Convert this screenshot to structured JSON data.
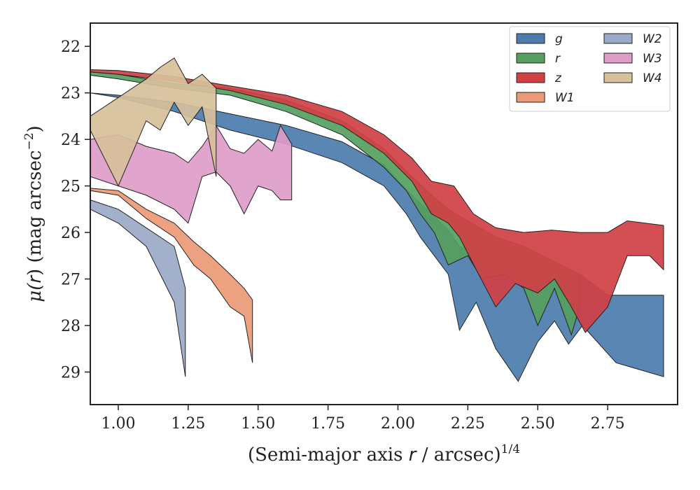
{
  "chart_data": {
    "type": "area",
    "title": "",
    "xlabel_parts": {
      "prefix": "(Semi-major axis ",
      "var": "r",
      "suffix": " / arcsec)",
      "power": "1/4"
    },
    "ylabel_parts": {
      "prefix": "μ(",
      "var": "r",
      "suffix": ") (mag arcsec",
      "power": "−2",
      "close": ")"
    },
    "xlim": [
      0.9,
      3.0
    ],
    "ylim": [
      29.7,
      21.5
    ],
    "y_inverted": true,
    "xticks": [
      "1.00",
      "1.25",
      "1.50",
      "1.75",
      "2.00",
      "2.25",
      "2.50",
      "2.75"
    ],
    "xtick_values": [
      1.0,
      1.25,
      1.5,
      1.75,
      2.0,
      2.25,
      2.5,
      2.75
    ],
    "yticks": [
      "22",
      "23",
      "24",
      "25",
      "26",
      "27",
      "28",
      "29"
    ],
    "ytick_values": [
      22,
      23,
      24,
      25,
      26,
      27,
      28,
      29
    ],
    "grid": false,
    "legend": {
      "placement": "top-right",
      "columns": 2
    },
    "series": [
      {
        "name": "g",
        "color": "#4c7cad",
        "upper": [
          [
            0.9,
            23.0
          ],
          [
            1.0,
            23.05
          ],
          [
            1.2,
            23.2
          ],
          [
            1.4,
            23.45
          ],
          [
            1.6,
            23.7
          ],
          [
            1.8,
            24.05
          ],
          [
            1.95,
            24.55
          ],
          [
            2.05,
            25.2
          ],
          [
            2.12,
            25.6
          ],
          [
            2.18,
            25.95
          ],
          [
            2.22,
            26.3
          ],
          [
            2.28,
            26.4
          ],
          [
            2.35,
            26.6
          ],
          [
            2.45,
            26.85
          ],
          [
            2.55,
            26.9
          ],
          [
            2.65,
            26.9
          ],
          [
            2.75,
            27.35
          ],
          [
            2.95,
            27.35
          ]
        ],
        "lower": [
          [
            0.9,
            23.0
          ],
          [
            1.0,
            23.1
          ],
          [
            1.2,
            23.4
          ],
          [
            1.4,
            23.8
          ],
          [
            1.6,
            24.1
          ],
          [
            1.8,
            24.5
          ],
          [
            1.95,
            25.0
          ],
          [
            2.03,
            25.6
          ],
          [
            2.08,
            26.1
          ],
          [
            2.13,
            26.5
          ],
          [
            2.18,
            26.9
          ],
          [
            2.22,
            28.1
          ],
          [
            2.28,
            27.5
          ],
          [
            2.35,
            28.5
          ],
          [
            2.43,
            29.2
          ],
          [
            2.5,
            28.35
          ],
          [
            2.56,
            27.9
          ],
          [
            2.61,
            28.4
          ],
          [
            2.66,
            28.0
          ],
          [
            2.78,
            28.8
          ],
          [
            2.95,
            29.1
          ]
        ]
      },
      {
        "name": "r",
        "color": "#55a05e",
        "upper": [
          [
            0.9,
            22.55
          ],
          [
            1.0,
            22.6
          ],
          [
            1.2,
            22.8
          ],
          [
            1.4,
            22.9
          ],
          [
            1.6,
            23.15
          ],
          [
            1.8,
            23.6
          ],
          [
            1.95,
            24.2
          ],
          [
            2.05,
            24.8
          ],
          [
            2.12,
            25.2
          ],
          [
            2.18,
            25.5
          ],
          [
            2.25,
            25.75
          ],
          [
            2.35,
            26.1
          ],
          [
            2.45,
            26.3
          ],
          [
            2.55,
            26.6
          ],
          [
            2.65,
            26.9
          ]
        ],
        "lower": [
          [
            0.9,
            22.62
          ],
          [
            1.0,
            22.7
          ],
          [
            1.2,
            22.9
          ],
          [
            1.4,
            23.05
          ],
          [
            1.6,
            23.4
          ],
          [
            1.8,
            23.9
          ],
          [
            1.95,
            24.6
          ],
          [
            2.03,
            25.1
          ],
          [
            2.08,
            25.6
          ],
          [
            2.13,
            26.0
          ],
          [
            2.18,
            26.7
          ],
          [
            2.25,
            26.5
          ],
          [
            2.3,
            27.0
          ],
          [
            2.38,
            26.9
          ],
          [
            2.45,
            27.2
          ],
          [
            2.5,
            28.0
          ],
          [
            2.56,
            27.2
          ],
          [
            2.62,
            28.2
          ],
          [
            2.65,
            27.6
          ]
        ]
      },
      {
        "name": "z",
        "color": "#d04045",
        "upper": [
          [
            0.9,
            22.5
          ],
          [
            1.0,
            22.52
          ],
          [
            1.2,
            22.65
          ],
          [
            1.4,
            22.85
          ],
          [
            1.6,
            23.05
          ],
          [
            1.8,
            23.4
          ],
          [
            1.95,
            23.9
          ],
          [
            2.05,
            24.4
          ],
          [
            2.12,
            24.9
          ],
          [
            2.2,
            25.0
          ],
          [
            2.27,
            25.6
          ],
          [
            2.35,
            25.9
          ],
          [
            2.45,
            26.0
          ],
          [
            2.55,
            25.95
          ],
          [
            2.65,
            26.0
          ],
          [
            2.75,
            26.0
          ],
          [
            2.82,
            25.75
          ],
          [
            2.95,
            25.85
          ]
        ],
        "lower": [
          [
            0.9,
            22.55
          ],
          [
            1.0,
            22.6
          ],
          [
            1.2,
            22.75
          ],
          [
            1.4,
            22.95
          ],
          [
            1.6,
            23.25
          ],
          [
            1.8,
            23.7
          ],
          [
            1.95,
            24.3
          ],
          [
            2.05,
            24.9
          ],
          [
            2.12,
            25.6
          ],
          [
            2.18,
            25.8
          ],
          [
            2.22,
            26.1
          ],
          [
            2.28,
            26.8
          ],
          [
            2.35,
            27.6
          ],
          [
            2.42,
            27.1
          ],
          [
            2.5,
            27.3
          ],
          [
            2.56,
            27.0
          ],
          [
            2.62,
            27.6
          ],
          [
            2.67,
            28.15
          ],
          [
            2.75,
            27.6
          ],
          [
            2.82,
            26.5
          ],
          [
            2.9,
            26.5
          ],
          [
            2.95,
            26.8
          ]
        ]
      },
      {
        "name": "W1",
        "color": "#ea9a76",
        "upper": [
          [
            0.9,
            25.05
          ],
          [
            1.0,
            25.1
          ],
          [
            1.1,
            25.5
          ],
          [
            1.2,
            25.8
          ],
          [
            1.27,
            26.2
          ],
          [
            1.33,
            26.5
          ],
          [
            1.4,
            26.9
          ],
          [
            1.45,
            27.2
          ],
          [
            1.48,
            27.45
          ]
        ],
        "lower": [
          [
            0.9,
            25.1
          ],
          [
            1.0,
            25.2
          ],
          [
            1.1,
            25.7
          ],
          [
            1.2,
            26.1
          ],
          [
            1.27,
            26.7
          ],
          [
            1.33,
            27.0
          ],
          [
            1.4,
            27.6
          ],
          [
            1.45,
            27.8
          ],
          [
            1.48,
            28.8
          ]
        ]
      },
      {
        "name": "W2",
        "color": "#9aa9c7",
        "upper": [
          [
            0.9,
            25.3
          ],
          [
            1.0,
            25.5
          ],
          [
            1.1,
            25.9
          ],
          [
            1.2,
            26.3
          ],
          [
            1.24,
            27.2
          ]
        ],
        "lower": [
          [
            0.9,
            25.5
          ],
          [
            1.0,
            25.8
          ],
          [
            1.1,
            26.3
          ],
          [
            1.2,
            27.5
          ],
          [
            1.24,
            29.1
          ]
        ]
      },
      {
        "name": "W3",
        "color": "#de9cc9",
        "upper": [
          [
            0.9,
            24.0
          ],
          [
            1.0,
            23.9
          ],
          [
            1.1,
            24.15
          ],
          [
            1.2,
            24.3
          ],
          [
            1.25,
            24.5
          ],
          [
            1.3,
            24.15
          ],
          [
            1.35,
            23.7
          ],
          [
            1.4,
            24.2
          ],
          [
            1.45,
            24.3
          ],
          [
            1.5,
            24.0
          ],
          [
            1.55,
            24.25
          ],
          [
            1.58,
            23.7
          ],
          [
            1.62,
            24.1
          ]
        ],
        "lower": [
          [
            0.9,
            24.8
          ],
          [
            1.0,
            25.0
          ],
          [
            1.1,
            25.2
          ],
          [
            1.2,
            25.5
          ],
          [
            1.25,
            25.8
          ],
          [
            1.3,
            24.8
          ],
          [
            1.35,
            24.7
          ],
          [
            1.4,
            25.0
          ],
          [
            1.45,
            25.6
          ],
          [
            1.5,
            25.0
          ],
          [
            1.55,
            25.1
          ],
          [
            1.58,
            25.3
          ],
          [
            1.62,
            25.3
          ]
        ]
      },
      {
        "name": "W4",
        "color": "#d7c09b",
        "upper": [
          [
            0.9,
            23.5
          ],
          [
            1.0,
            23.1
          ],
          [
            1.1,
            22.7
          ],
          [
            1.15,
            22.45
          ],
          [
            1.2,
            22.25
          ],
          [
            1.25,
            22.8
          ],
          [
            1.3,
            22.6
          ],
          [
            1.35,
            22.9
          ]
        ],
        "lower": [
          [
            0.9,
            23.8
          ],
          [
            1.0,
            25.0
          ],
          [
            1.1,
            23.6
          ],
          [
            1.15,
            23.8
          ],
          [
            1.2,
            23.2
          ],
          [
            1.25,
            23.7
          ],
          [
            1.3,
            23.3
          ],
          [
            1.35,
            24.8
          ]
        ]
      }
    ]
  }
}
